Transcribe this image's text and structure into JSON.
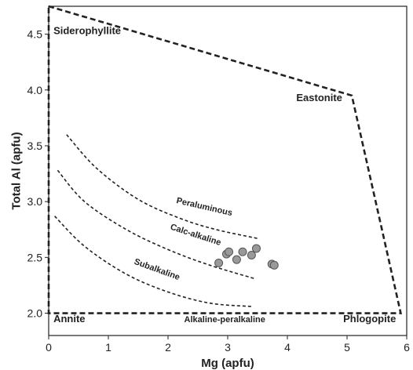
{
  "chart_data": {
    "type": "scatter",
    "xlabel": "Mg (apfu)",
    "ylabel": "Total Al (apfu)",
    "xlim": [
      0,
      6
    ],
    "ylim": [
      1.8,
      4.75
    ],
    "xticks": [
      "0",
      "1",
      "2",
      "3",
      "4",
      "5",
      "6"
    ],
    "yticks": [
      "2.0",
      "2.5",
      "3.0",
      "3.5",
      "4.0",
      "4.5"
    ],
    "grid": false,
    "points": [
      {
        "x": 2.85,
        "y": 2.45
      },
      {
        "x": 2.98,
        "y": 2.53
      },
      {
        "x": 3.02,
        "y": 2.55
      },
      {
        "x": 3.15,
        "y": 2.48
      },
      {
        "x": 3.25,
        "y": 2.55
      },
      {
        "x": 3.4,
        "y": 2.52
      },
      {
        "x": 3.48,
        "y": 2.58
      },
      {
        "x": 3.74,
        "y": 2.44
      },
      {
        "x": 3.78,
        "y": 2.43
      }
    ],
    "field_boundary": [
      {
        "x": 0,
        "y": 4.75
      },
      {
        "x": 5.08,
        "y": 3.95
      },
      {
        "x": 5.9,
        "y": 2.0
      },
      {
        "x": 0,
        "y": 2.0
      }
    ],
    "division_curves": [
      {
        "name": "Peraluminous",
        "points": [
          [
            0.3,
            3.6
          ],
          [
            0.8,
            3.3
          ],
          [
            1.5,
            3.02
          ],
          [
            2.2,
            2.85
          ],
          [
            2.8,
            2.75
          ],
          [
            3.5,
            2.67
          ]
        ]
      },
      {
        "name": "Calc-alkaline",
        "points": [
          [
            0.15,
            3.28
          ],
          [
            0.6,
            3.0
          ],
          [
            1.3,
            2.75
          ],
          [
            2.0,
            2.57
          ],
          [
            2.7,
            2.43
          ],
          [
            3.45,
            2.31
          ]
        ]
      },
      {
        "name": "Subalkaline",
        "points": [
          [
            0.1,
            2.87
          ],
          [
            0.6,
            2.6
          ],
          [
            1.3,
            2.35
          ],
          [
            2.0,
            2.19
          ],
          [
            2.7,
            2.09
          ],
          [
            3.4,
            2.06
          ]
        ]
      }
    ],
    "annotations": [
      {
        "text": "Siderophyllite",
        "x": 0.08,
        "y": 4.5,
        "size": 13,
        "anchor": "start"
      },
      {
        "text": "Eastonite",
        "x": 4.15,
        "y": 3.9,
        "size": 13,
        "anchor": "start"
      },
      {
        "text": "Peraluminous",
        "x": 2.6,
        "y": 2.93,
        "size": 11,
        "anchor": "middle",
        "rotate": 13
      },
      {
        "text": "Calc-alkaline",
        "x": 2.45,
        "y": 2.68,
        "size": 11,
        "anchor": "middle",
        "rotate": 18
      },
      {
        "text": "Subalkaline",
        "x": 1.8,
        "y": 2.37,
        "size": 11,
        "anchor": "middle",
        "rotate": 20
      },
      {
        "text": "Annite",
        "x": 0.08,
        "y": 1.92,
        "size": 13,
        "anchor": "start"
      },
      {
        "text": "Alkaline-peralkaline",
        "x": 2.95,
        "y": 1.92,
        "size": 11,
        "anchor": "middle"
      },
      {
        "text": "Phlogopite",
        "x": 5.82,
        "y": 1.92,
        "size": 13,
        "anchor": "end"
      }
    ],
    "colors": {
      "points_fill": "#999999",
      "points_stroke": "#555555",
      "lines": "#222222"
    }
  }
}
